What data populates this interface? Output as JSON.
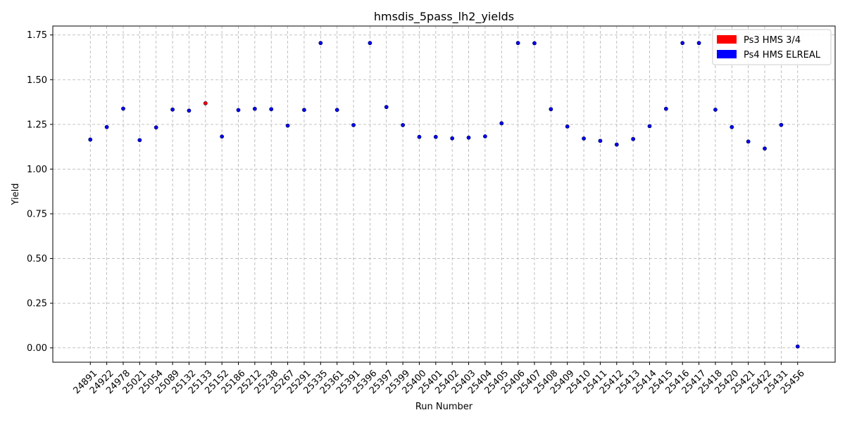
{
  "chart_data": {
    "type": "scatter",
    "title": "hmsdis_5pass_lh2_yields",
    "xlabel": "Run Number",
    "ylabel": "Yield",
    "ylim": [
      -0.08,
      1.8
    ],
    "yticks": [
      0.0,
      0.25,
      0.5,
      0.75,
      1.0,
      1.25,
      1.5,
      1.75
    ],
    "ytick_labels": [
      "0.00",
      "0.25",
      "0.50",
      "0.75",
      "1.00",
      "1.25",
      "1.50",
      "1.75"
    ],
    "grid": true,
    "grid_style": "dashed",
    "legend_position": "top-right",
    "categories": [
      "24891",
      "24922",
      "24978",
      "25021",
      "25054",
      "25089",
      "25132",
      "25133",
      "25152",
      "25186",
      "25212",
      "25238",
      "25267",
      "25291",
      "25335",
      "25361",
      "25391",
      "25396",
      "25397",
      "25399",
      "25400",
      "25401",
      "25402",
      "25403",
      "25404",
      "25405",
      "25406",
      "25407",
      "25408",
      "25409",
      "25410",
      "25411",
      "25412",
      "25413",
      "25414",
      "25415",
      "25416",
      "25417",
      "25418",
      "25420",
      "25421",
      "25422",
      "25431",
      "25456"
    ],
    "series": [
      {
        "name": "Ps3 HMS 3/4",
        "color": "#ff0000",
        "points": [
          {
            "run": "25133",
            "y": 1.368
          }
        ]
      },
      {
        "name": "Ps4 HMS ELREAL",
        "color": "#0000ff",
        "points": [
          {
            "run": "24891",
            "y": 1.165
          },
          {
            "run": "24922",
            "y": 1.235
          },
          {
            "run": "24978",
            "y": 1.338
          },
          {
            "run": "25021",
            "y": 1.162
          },
          {
            "run": "25054",
            "y": 1.233
          },
          {
            "run": "25089",
            "y": 1.333
          },
          {
            "run": "25132",
            "y": 1.327
          },
          {
            "run": "25152",
            "y": 1.182
          },
          {
            "run": "25186",
            "y": 1.33
          },
          {
            "run": "25212",
            "y": 1.337
          },
          {
            "run": "25238",
            "y": 1.335
          },
          {
            "run": "25267",
            "y": 1.243
          },
          {
            "run": "25291",
            "y": 1.331
          },
          {
            "run": "25335",
            "y": 1.705
          },
          {
            "run": "25361",
            "y": 1.331
          },
          {
            "run": "25391",
            "y": 1.246
          },
          {
            "run": "25396",
            "y": 1.705
          },
          {
            "run": "25397",
            "y": 1.347
          },
          {
            "run": "25399",
            "y": 1.246
          },
          {
            "run": "25400",
            "y": 1.18
          },
          {
            "run": "25401",
            "y": 1.18
          },
          {
            "run": "25402",
            "y": 1.172
          },
          {
            "run": "25403",
            "y": 1.176
          },
          {
            "run": "25404",
            "y": 1.183
          },
          {
            "run": "25405",
            "y": 1.256
          },
          {
            "run": "25406",
            "y": 1.705
          },
          {
            "run": "25407",
            "y": 1.704
          },
          {
            "run": "25408",
            "y": 1.335
          },
          {
            "run": "25409",
            "y": 1.238
          },
          {
            "run": "25410",
            "y": 1.171
          },
          {
            "run": "25411",
            "y": 1.158
          },
          {
            "run": "25412",
            "y": 1.137
          },
          {
            "run": "25413",
            "y": 1.168
          },
          {
            "run": "25414",
            "y": 1.24
          },
          {
            "run": "25415",
            "y": 1.337
          },
          {
            "run": "25416",
            "y": 1.705
          },
          {
            "run": "25417",
            "y": 1.705
          },
          {
            "run": "25418",
            "y": 1.332
          },
          {
            "run": "25420",
            "y": 1.235
          },
          {
            "run": "25421",
            "y": 1.154
          },
          {
            "run": "25422",
            "y": 1.115
          },
          {
            "run": "25431",
            "y": 1.247
          },
          {
            "run": "25456",
            "y": 0.008
          }
        ]
      }
    ]
  }
}
